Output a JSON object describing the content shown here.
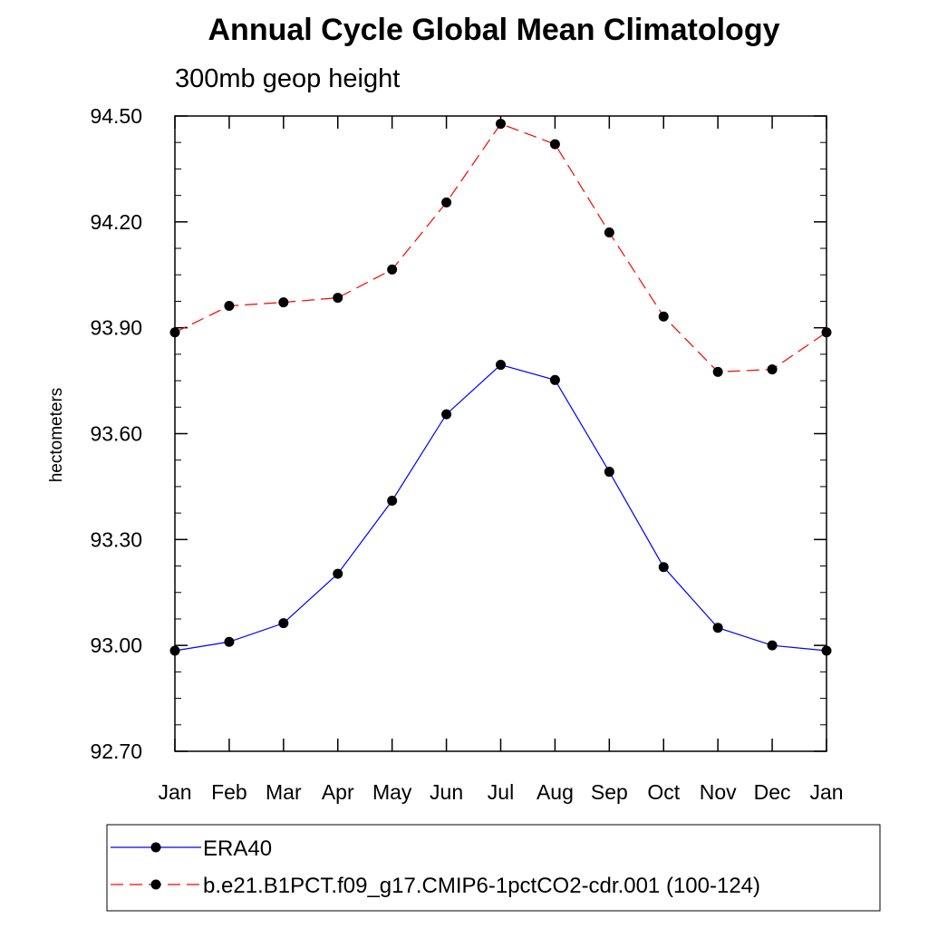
{
  "chart_data": {
    "type": "line",
    "title": "Annual Cycle Global Mean Climatology",
    "subtitle": "300mb geop height",
    "xlabel": "",
    "ylabel": "hectometers",
    "categories": [
      "Jan",
      "Feb",
      "Mar",
      "Apr",
      "May",
      "Jun",
      "Jul",
      "Aug",
      "Sep",
      "Oct",
      "Nov",
      "Dec",
      "Jan"
    ],
    "ylim": [
      92.7,
      94.5
    ],
    "yticks": [
      "92.70",
      "93.00",
      "93.30",
      "93.60",
      "93.90",
      "94.20",
      "94.50"
    ],
    "grid": false,
    "legend_position": "bottom",
    "series": [
      {
        "name": "ERA40",
        "color": "#0000ff",
        "dash": "solid",
        "marker": "filled-circle",
        "values": [
          92.985,
          93.01,
          93.063,
          93.203,
          93.41,
          93.655,
          93.795,
          93.752,
          93.492,
          93.222,
          93.05,
          93.0,
          92.985
        ]
      },
      {
        "name": "b.e21.B1PCT.f09_g17.CMIP6-1pctCO2-cdr.001 (100-124)",
        "color": "#ff0000",
        "dash": "dashed",
        "marker": "filled-circle",
        "values": [
          93.887,
          93.962,
          93.972,
          93.985,
          94.065,
          94.255,
          94.478,
          94.42,
          94.17,
          93.932,
          93.775,
          93.782,
          93.887
        ]
      }
    ]
  }
}
